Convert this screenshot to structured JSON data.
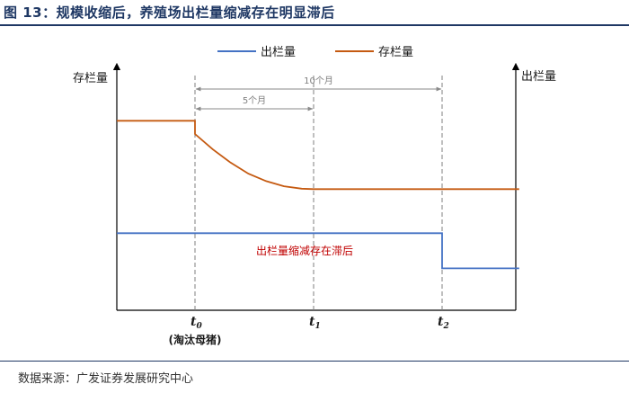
{
  "figure": {
    "title": "图 13：规模收缩后，养殖场出栏量缩减存在明显滞后",
    "source": "数据来源：广发证券发展研究中心"
  },
  "chart_data": {
    "type": "line",
    "legend": {
      "placement": "top",
      "items": [
        {
          "name": "出栏量",
          "color": "#4472c4"
        },
        {
          "name": "存栏量",
          "color": "#c55a11"
        }
      ]
    },
    "axis_left_label": "存栏量",
    "axis_right_label": "出栏量",
    "time_markers": [
      {
        "label": "t",
        "sub": "0",
        "note": "(淘汰母猪)"
      },
      {
        "label": "t",
        "sub": "1",
        "note": ""
      },
      {
        "label": "t",
        "sub": "2",
        "note": ""
      }
    ],
    "spans": [
      {
        "label": "5个月",
        "from": 0,
        "to": 1
      },
      {
        "label": "10个月",
        "from": 0,
        "to": 2
      }
    ],
    "annotation": "出栏量缩减存在滞后",
    "annotation_color": "#c00000",
    "series": [
      {
        "name": "存栏量",
        "color": "#c55a11",
        "points": [
          [
            -1,
            86
          ],
          [
            0,
            86
          ],
          [
            0,
            80
          ],
          [
            0.15,
            73
          ],
          [
            0.3,
            67
          ],
          [
            0.45,
            62
          ],
          [
            0.6,
            58.6
          ],
          [
            0.75,
            56.3
          ],
          [
            0.9,
            55.2
          ],
          [
            1,
            55
          ],
          [
            2,
            55
          ],
          [
            2.6,
            55
          ]
        ]
      },
      {
        "name": "出栏量",
        "color": "#4472c4",
        "points": [
          [
            -1,
            35
          ],
          [
            2,
            35
          ],
          [
            2,
            19
          ],
          [
            2.6,
            19
          ]
        ]
      }
    ],
    "grid": false,
    "dashed_guides": true
  }
}
